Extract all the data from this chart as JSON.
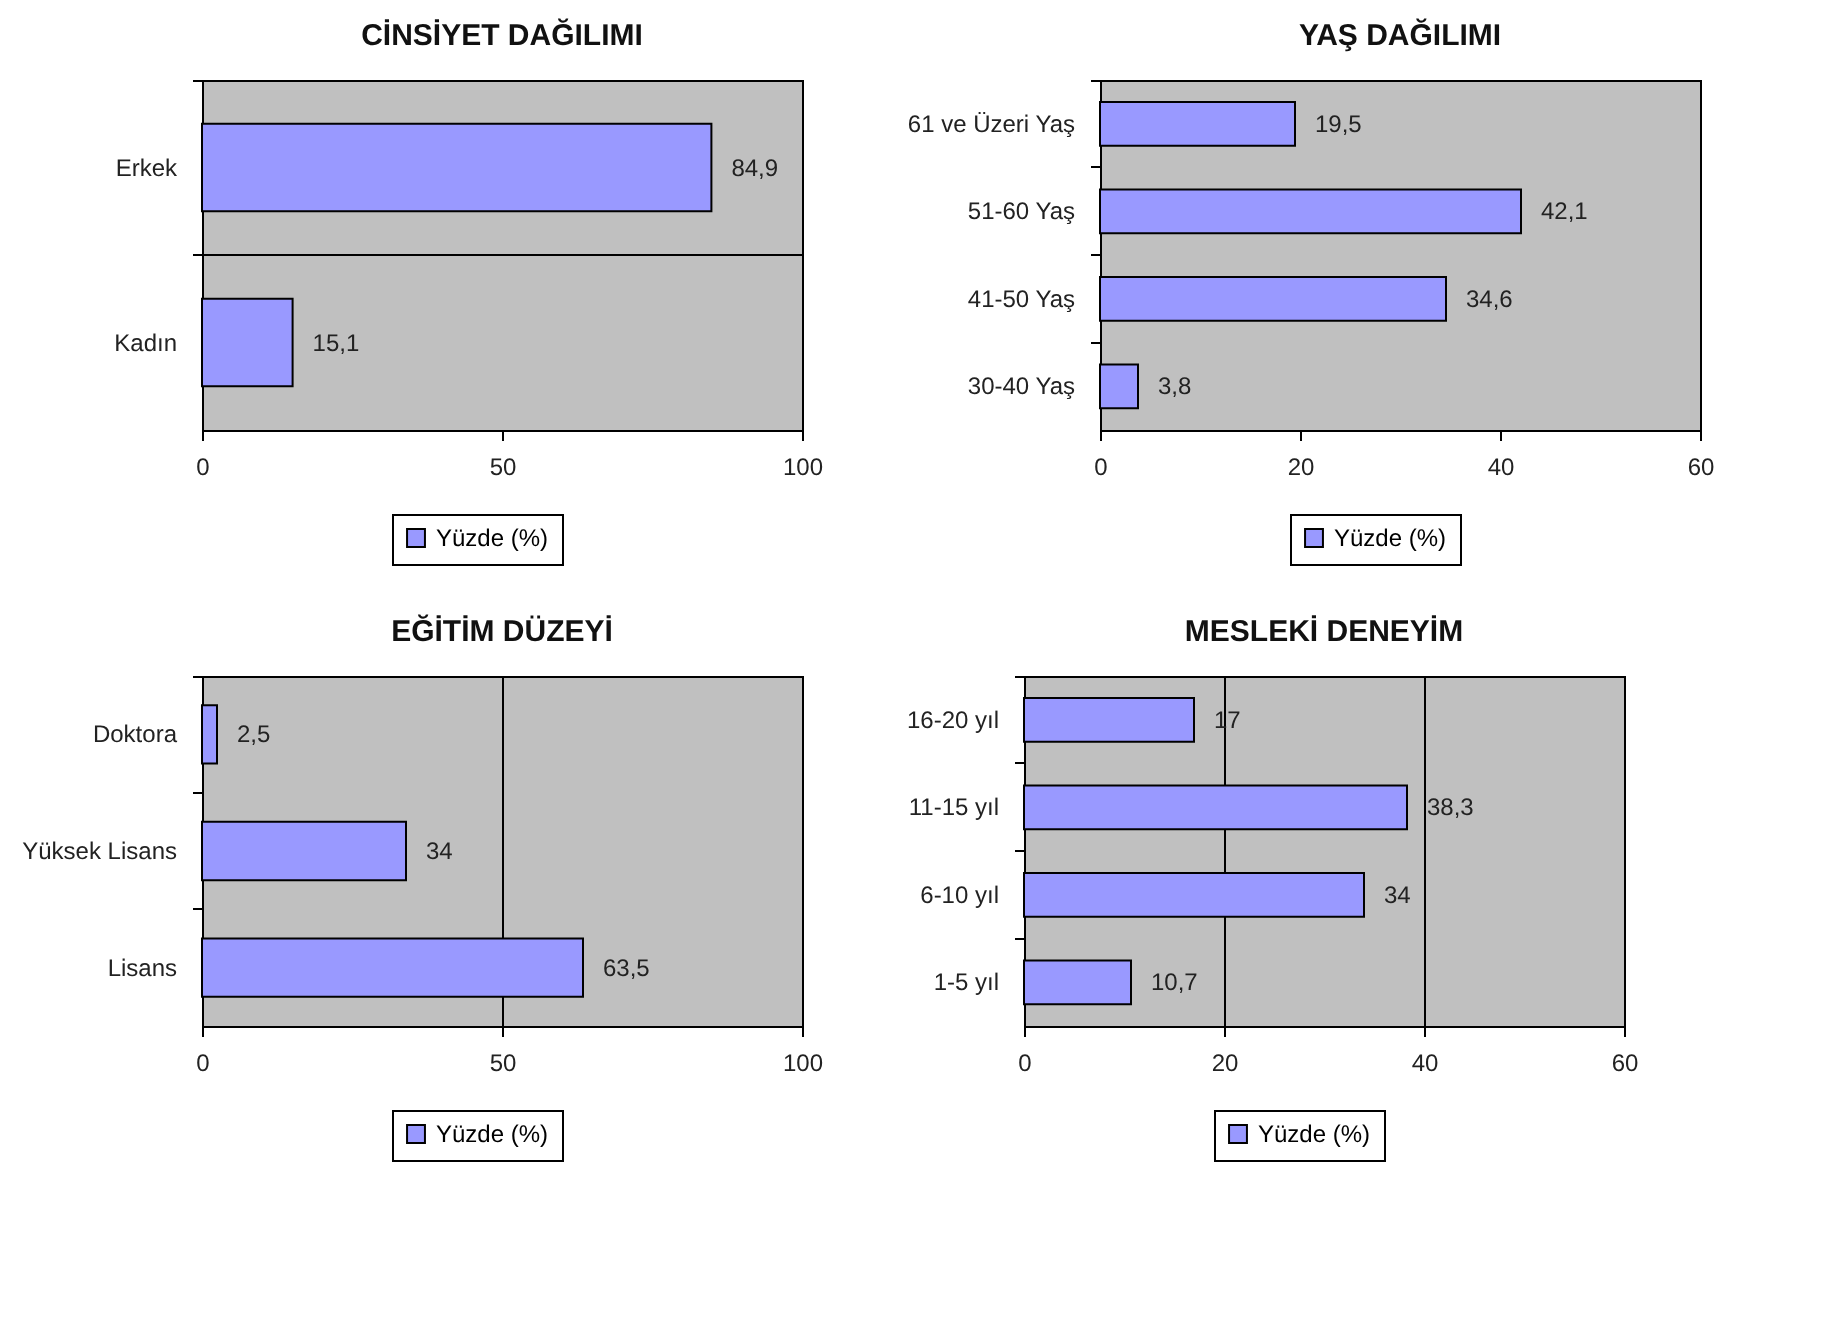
{
  "chart_data": [
    {
      "type": "bar",
      "orientation": "horizontal",
      "title": "CİNSİYET DAĞILIMI",
      "categories": [
        "Erkek",
        "Kadın"
      ],
      "series": [
        {
          "name": "Yüzde (%)",
          "color": "#9999ff",
          "values": [
            84.9,
            15.1
          ],
          "value_labels": [
            "84,9",
            "15,1"
          ]
        }
      ],
      "xlim": [
        0,
        100
      ],
      "xticks": [
        0,
        50,
        100
      ],
      "grid": "y",
      "legend": "bottom"
    },
    {
      "type": "bar",
      "orientation": "horizontal",
      "title": "YAŞ DAĞILIMI",
      "categories": [
        "61 ve Üzeri Yaş",
        "51-60 Yaş",
        "41-50 Yaş",
        "30-40 Yaş"
      ],
      "series": [
        {
          "name": "Yüzde (%)",
          "color": "#9999ff",
          "values": [
            19.5,
            42.1,
            34.6,
            3.8
          ],
          "value_labels": [
            "19,5",
            "42,1",
            "34,6",
            "3,8"
          ]
        }
      ],
      "xlim": [
        0,
        60
      ],
      "xticks": [
        0,
        20,
        40,
        60
      ],
      "grid": false,
      "legend": "bottom"
    },
    {
      "type": "bar",
      "orientation": "horizontal",
      "title": "EĞİTİM DÜZEYİ",
      "categories": [
        "Doktora",
        "Yüksek Lisans",
        "Lisans"
      ],
      "series": [
        {
          "name": "Yüzde (%)",
          "color": "#9999ff",
          "values": [
            2.5,
            34,
            63.5
          ],
          "value_labels": [
            "2,5",
            "34",
            "63,5"
          ]
        }
      ],
      "xlim": [
        0,
        100
      ],
      "xticks": [
        0,
        50,
        100
      ],
      "grid": "x",
      "legend": "bottom"
    },
    {
      "type": "bar",
      "orientation": "horizontal",
      "title": "MESLEKİ DENEYİM",
      "categories": [
        "16-20 yıl",
        "11-15 yıl",
        "6-10 yıl",
        "1-5 yıl"
      ],
      "series": [
        {
          "name": "Yüzde (%)",
          "color": "#9999ff",
          "values": [
            17,
            38.3,
            34,
            10.7
          ],
          "value_labels": [
            "17",
            "38,3",
            "34",
            "10,7"
          ]
        }
      ],
      "xlim": [
        0,
        60
      ],
      "xticks": [
        0,
        20,
        40,
        60
      ],
      "grid": "x",
      "legend": "bottom"
    }
  ]
}
